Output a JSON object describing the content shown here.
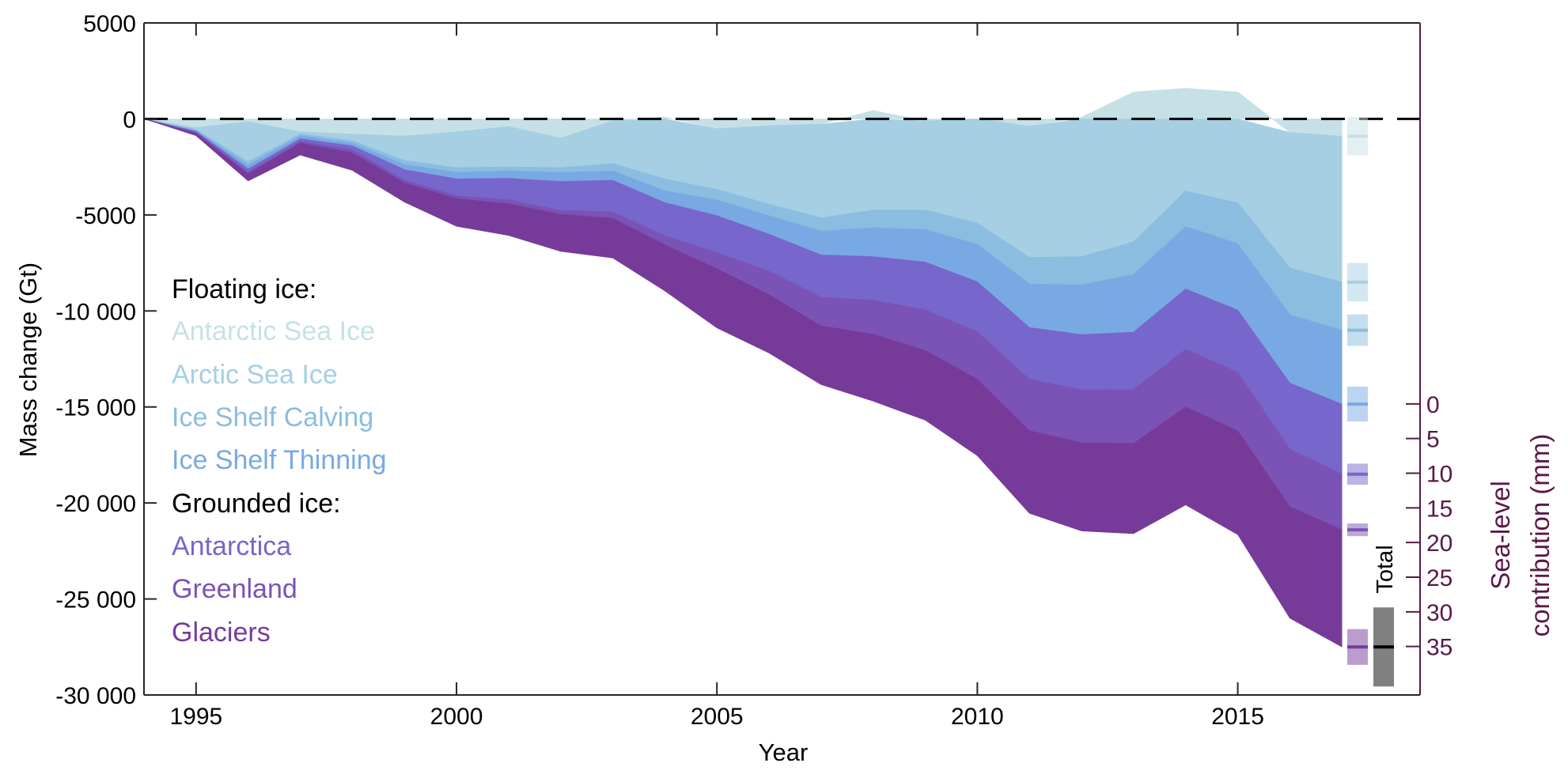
{
  "chart_data": {
    "type": "area",
    "stacked": true,
    "xlabel": "Year",
    "ylabel": "Mass change (Gt)",
    "y2label_line1": "Sea-level",
    "y2label_line2": "contribution (mm)",
    "xlim": [
      1994,
      2018.5
    ],
    "ylim": [
      -30000,
      5000
    ],
    "xticks": [
      1995,
      2000,
      2005,
      2010,
      2015
    ],
    "yticks": [
      5000,
      0,
      -5000,
      -10000,
      -15000,
      -20000,
      -25000,
      -30000
    ],
    "ytick_labels": [
      "5000",
      "0",
      "-5000",
      "-10 000",
      "-15 000",
      "-20 000",
      "-25 000",
      "-30 000"
    ],
    "y2ticks": [
      0,
      5,
      10,
      15,
      20,
      25,
      30,
      35
    ],
    "y2_zero_at_gt": -14840,
    "y2_gt_per_mm": 361,
    "y2_color": "#5a1847",
    "zero_line": "dashed",
    "grid": false,
    "legend_placement": "left-middle",
    "legend_groups": [
      "Floating ice:",
      "Grounded ice:"
    ],
    "total_label": "Total",
    "total_end_value": -27500,
    "total_end_uncertainty": 2060,
    "x": [
      1994,
      1995,
      1996,
      1997,
      1998,
      1999,
      2000,
      2001,
      2002,
      2003,
      2004,
      2005,
      2006,
      2007,
      2008,
      2009,
      2010,
      2011,
      2012,
      2013,
      2014,
      2015,
      2016,
      2017
    ],
    "series": [
      {
        "name": "Antarctic Sea Ice",
        "group": "Floating ice:",
        "color": "#c6e1e6",
        "end_uncertainty": 1000,
        "values": [
          0,
          -450,
          -140,
          -670,
          -790,
          -890,
          -670,
          -400,
          -990,
          -100,
          100,
          -510,
          -350,
          -270,
          440,
          -100,
          0,
          -370,
          100,
          1400,
          1600,
          1400,
          -700,
          -900
        ]
      },
      {
        "name": "Arctic Sea Ice",
        "group": "Floating ice:",
        "color": "#a6cfe3",
        "end_uncertainty": 1000,
        "values": [
          0,
          -100,
          -2090,
          -110,
          -340,
          -1270,
          -1870,
          -2100,
          -1550,
          -2220,
          -3120,
          -3160,
          -4080,
          -4880,
          -4740,
          -4640,
          -5430,
          -6840,
          -7170,
          -6400,
          -3750,
          -4370,
          -7060,
          -7600
        ]
      },
      {
        "name": "Ice Shelf Calving",
        "group": "Floating ice:",
        "color": "#8bbde0",
        "end_uncertainty": 820,
        "values": [
          0,
          -50,
          -170,
          -100,
          -130,
          -210,
          -240,
          -210,
          -240,
          -390,
          -620,
          -550,
          -610,
          -690,
          -920,
          -1020,
          -1100,
          -1380,
          -1470,
          -1700,
          -1850,
          -2130,
          -2440,
          -2500
        ]
      },
      {
        "name": "Ice Shelf Thinning",
        "group": "Floating ice:",
        "color": "#79a9e3",
        "end_uncertainty": 910,
        "values": [
          0,
          -50,
          -200,
          -150,
          -140,
          -270,
          -340,
          -380,
          -480,
          -480,
          -620,
          -820,
          -960,
          -1240,
          -1510,
          -1690,
          -1950,
          -2270,
          -2590,
          -3000,
          -3250,
          -3450,
          -3550,
          -3850
        ]
      },
      {
        "name": "Antarctica",
        "group": "Grounded ice:",
        "color": "#7766cb",
        "end_uncertainty": 550,
        "values": [
          0,
          -50,
          -180,
          -140,
          -210,
          -550,
          -890,
          -1120,
          -1510,
          -1650,
          -1720,
          -1930,
          -1930,
          -2210,
          -2270,
          -2490,
          -2610,
          -2700,
          -2880,
          -3000,
          -3150,
          -3250,
          -3450,
          -3650
        ]
      },
      {
        "name": "Greenland",
        "group": "Grounded ice:",
        "color": "#7b52b5",
        "end_uncertainty": 330,
        "values": [
          0,
          -50,
          -90,
          -90,
          -160,
          -140,
          -140,
          -210,
          -200,
          -340,
          -480,
          -830,
          -1220,
          -1490,
          -1770,
          -2120,
          -2470,
          -2680,
          -2750,
          -2800,
          -3000,
          -3050,
          -3000,
          -2900
        ]
      },
      {
        "name": "Glaciers",
        "group": "Grounded ice:",
        "color": "#763b99",
        "end_uncertainty": 930,
        "values": [
          0,
          -120,
          -360,
          -620,
          -910,
          -1000,
          -1440,
          -1650,
          -1930,
          -2060,
          -2400,
          -3080,
          -3040,
          -3060,
          -3490,
          -3630,
          -3980,
          -4300,
          -4600,
          -4700,
          -5100,
          -5400,
          -5800,
          -6100
        ]
      }
    ]
  }
}
